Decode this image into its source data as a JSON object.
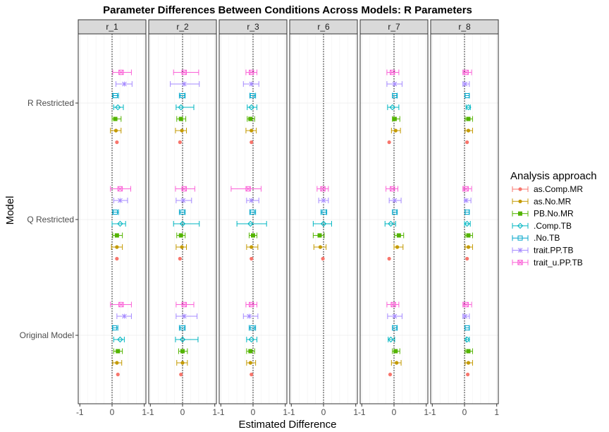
{
  "chart_data": {
    "type": "forest",
    "title": "Parameter Differences Between Conditions Across Models: R Parameters",
    "xlabel": "Estimated Difference",
    "ylabel": "Model",
    "xlim": [
      -1.05,
      1.05
    ],
    "x_ticks": [
      -1,
      0,
      1
    ],
    "x_tick_labels": [
      "-1",
      "0",
      "1"
    ],
    "reference_line": 0,
    "models": [
      "R Restricted",
      "Q Restricted",
      "Original Model"
    ],
    "panels": [
      "r_1",
      "r_2",
      "r_3",
      "r_6",
      "r_7",
      "r_8"
    ],
    "legend": {
      "title": "Analysis approach",
      "position": "right",
      "items": [
        {
          "name": "as.Comp.MR",
          "color": "#F8766D",
          "shape": "circle"
        },
        {
          "name": "as.No.MR",
          "color": "#C49A00",
          "shape": "circle"
        },
        {
          "name": "PB.No.MR",
          "color": "#53B400",
          "shape": "square"
        },
        {
          "name": ".Comp.TB",
          "color": "#00B6C2",
          "shape": "diamond"
        },
        {
          "name": ".No.TB",
          "color": "#00A6CA",
          "shape": "square-open"
        },
        {
          "name": "trait.PP.TB",
          "color": "#A58AFF",
          "shape": "star"
        },
        {
          "name": "trait_u.PP.TB",
          "color": "#FB61D7",
          "shape": "square-cross"
        }
      ]
    },
    "series": [
      {
        "name": "as.Comp.MR",
        "data": {
          "r_1": [
            {
              "m": "R Restricted",
              "est": 0.15,
              "lo": 0.15,
              "hi": 0.15
            },
            {
              "m": "Q Restricted",
              "est": 0.15,
              "lo": 0.15,
              "hi": 0.15
            },
            {
              "m": "Original Model",
              "est": 0.18,
              "lo": 0.18,
              "hi": 0.18
            }
          ],
          "r_2": [
            {
              "m": "R Restricted",
              "est": -0.08,
              "lo": -0.08,
              "hi": -0.08
            },
            {
              "m": "Q Restricted",
              "est": -0.08,
              "lo": -0.08,
              "hi": -0.08
            },
            {
              "m": "Original Model",
              "est": -0.05,
              "lo": -0.05,
              "hi": -0.05
            }
          ],
          "r_3": [
            {
              "m": "R Restricted",
              "est": -0.05,
              "lo": -0.05,
              "hi": -0.05
            },
            {
              "m": "Q Restricted",
              "est": -0.05,
              "lo": -0.05,
              "hi": -0.05
            },
            {
              "m": "Original Model",
              "est": -0.05,
              "lo": -0.05,
              "hi": -0.05
            }
          ],
          "r_6": [
            {
              "m": "Q Restricted",
              "est": -0.02,
              "lo": -0.02,
              "hi": -0.02
            }
          ],
          "r_7": [
            {
              "m": "R Restricted",
              "est": -0.15,
              "lo": -0.15,
              "hi": -0.15
            },
            {
              "m": "Q Restricted",
              "est": -0.15,
              "lo": -0.15,
              "hi": -0.15
            },
            {
              "m": "Original Model",
              "est": -0.12,
              "lo": -0.12,
              "hi": -0.12
            }
          ],
          "r_8": [
            {
              "m": "R Restricted",
              "est": 0.08,
              "lo": 0.08,
              "hi": 0.08
            },
            {
              "m": "Q Restricted",
              "est": 0.08,
              "lo": 0.08,
              "hi": 0.08
            },
            {
              "m": "Original Model",
              "est": 0.1,
              "lo": 0.1,
              "hi": 0.1
            }
          ]
        }
      },
      {
        "name": "as.No.MR",
        "data": {
          "r_1": [
            {
              "m": "R Restricted",
              "est": 0.12,
              "lo": -0.05,
              "hi": 0.28
            },
            {
              "m": "Q Restricted",
              "est": 0.15,
              "lo": -0.02,
              "hi": 0.32
            },
            {
              "m": "Original Model",
              "est": 0.15,
              "lo": 0.02,
              "hi": 0.3
            }
          ],
          "r_2": [
            {
              "m": "R Restricted",
              "est": -0.02,
              "lo": -0.22,
              "hi": 0.12
            },
            {
              "m": "Q Restricted",
              "est": -0.02,
              "lo": -0.2,
              "hi": 0.12
            },
            {
              "m": "Original Model",
              "est": 0.0,
              "lo": -0.18,
              "hi": 0.15
            }
          ],
          "r_3": [
            {
              "m": "R Restricted",
              "est": -0.05,
              "lo": -0.22,
              "hi": 0.1
            },
            {
              "m": "Q Restricted",
              "est": -0.05,
              "lo": -0.2,
              "hi": 0.15
            },
            {
              "m": "Original Model",
              "est": -0.08,
              "lo": -0.2,
              "hi": 0.08
            }
          ],
          "r_6": [
            {
              "m": "Q Restricted",
              "est": -0.1,
              "lo": -0.3,
              "hi": 0.08
            }
          ],
          "r_7": [
            {
              "m": "R Restricted",
              "est": 0.05,
              "lo": -0.08,
              "hi": 0.2
            },
            {
              "m": "Q Restricted",
              "est": 0.1,
              "lo": 0.0,
              "hi": 0.28
            },
            {
              "m": "Original Model",
              "est": 0.08,
              "lo": -0.08,
              "hi": 0.22
            }
          ],
          "r_8": [
            {
              "m": "R Restricted",
              "est": 0.12,
              "lo": 0.02,
              "hi": 0.25
            },
            {
              "m": "Q Restricted",
              "est": 0.12,
              "lo": 0.02,
              "hi": 0.25
            },
            {
              "m": "Original Model",
              "est": 0.12,
              "lo": 0.02,
              "hi": 0.25
            }
          ]
        }
      },
      {
        "name": "PB.No.MR",
        "data": {
          "r_1": [
            {
              "m": "R Restricted",
              "est": 0.1,
              "lo": 0.0,
              "hi": 0.28
            },
            {
              "m": "Q Restricted",
              "est": 0.15,
              "lo": 0.02,
              "hi": 0.32
            },
            {
              "m": "Original Model",
              "est": 0.18,
              "lo": 0.05,
              "hi": 0.32
            }
          ],
          "r_2": [
            {
              "m": "R Restricted",
              "est": -0.05,
              "lo": -0.18,
              "hi": 0.1
            },
            {
              "m": "Q Restricted",
              "est": -0.05,
              "lo": -0.18,
              "hi": 0.08
            },
            {
              "m": "Original Model",
              "est": 0.0,
              "lo": -0.12,
              "hi": 0.15
            }
          ],
          "r_3": [
            {
              "m": "R Restricted",
              "est": -0.08,
              "lo": -0.18,
              "hi": 0.05
            },
            {
              "m": "Q Restricted",
              "est": 0.0,
              "lo": -0.12,
              "hi": 0.12
            },
            {
              "m": "Original Model",
              "est": -0.08,
              "lo": -0.2,
              "hi": 0.05
            }
          ],
          "r_6": [
            {
              "m": "Q Restricted",
              "est": -0.12,
              "lo": -0.32,
              "hi": 0.02
            }
          ],
          "r_7": [
            {
              "m": "R Restricted",
              "est": 0.02,
              "lo": -0.05,
              "hi": 0.18
            },
            {
              "m": "Q Restricted",
              "est": 0.15,
              "lo": 0.02,
              "hi": 0.3
            },
            {
              "m": "Original Model",
              "est": 0.05,
              "lo": -0.05,
              "hi": 0.18
            }
          ],
          "r_8": [
            {
              "m": "R Restricted",
              "est": 0.12,
              "lo": 0.02,
              "hi": 0.25
            },
            {
              "m": "Q Restricted",
              "est": 0.12,
              "lo": 0.02,
              "hi": 0.25
            },
            {
              "m": "Original Model",
              "est": 0.12,
              "lo": 0.02,
              "hi": 0.25
            }
          ]
        }
      },
      {
        "name": ".Comp.TB",
        "data": {
          "r_1": [
            {
              "m": "R Restricted",
              "est": 0.18,
              "lo": 0.05,
              "hi": 0.35
            },
            {
              "m": "Q Restricted",
              "est": 0.25,
              "lo": 0.0,
              "hi": 0.42
            },
            {
              "m": "Original Model",
              "est": 0.25,
              "lo": 0.05,
              "hi": 0.38
            }
          ],
          "r_2": [
            {
              "m": "R Restricted",
              "est": -0.05,
              "lo": -0.2,
              "hi": 0.35
            },
            {
              "m": "Q Restricted",
              "est": 0.0,
              "lo": -0.28,
              "hi": 0.52
            },
            {
              "m": "Original Model",
              "est": 0.0,
              "lo": -0.22,
              "hi": 0.48
            }
          ],
          "r_3": [
            {
              "m": "R Restricted",
              "est": -0.05,
              "lo": -0.18,
              "hi": 0.12
            },
            {
              "m": "Q Restricted",
              "est": -0.08,
              "lo": -0.5,
              "hi": 0.42
            },
            {
              "m": "Original Model",
              "est": -0.05,
              "lo": -0.2,
              "hi": 0.12
            }
          ],
          "r_6": [
            {
              "m": "Q Restricted",
              "est": 0.0,
              "lo": -0.32,
              "hi": 0.25
            }
          ],
          "r_7": [
            {
              "m": "R Restricted",
              "est": -0.05,
              "lo": -0.2,
              "hi": 0.15
            },
            {
              "m": "Q Restricted",
              "est": -0.1,
              "lo": -0.28,
              "hi": 0.05
            },
            {
              "m": "Original Model",
              "est": -0.1,
              "lo": -0.18,
              "hi": 0.02
            }
          ],
          "r_8": [
            {
              "m": "R Restricted",
              "est": 0.12,
              "lo": 0.05,
              "hi": 0.18
            },
            {
              "m": "Q Restricted",
              "est": 0.08,
              "lo": 0.0,
              "hi": 0.18
            },
            {
              "m": "Original Model",
              "est": 0.08,
              "lo": 0.05,
              "hi": 0.15
            }
          ]
        }
      },
      {
        "name": ".No.TB",
        "data": {
          "r_1": [
            {
              "m": "R Restricted",
              "est": 0.1,
              "lo": 0.02,
              "hi": 0.2
            },
            {
              "m": "Q Restricted",
              "est": 0.1,
              "lo": 0.02,
              "hi": 0.2
            },
            {
              "m": "Original Model",
              "est": 0.08,
              "lo": 0.02,
              "hi": 0.18
            }
          ],
          "r_2": [
            {
              "m": "R Restricted",
              "est": 0.0,
              "lo": -0.1,
              "hi": 0.08
            },
            {
              "m": "Q Restricted",
              "est": 0.0,
              "lo": -0.1,
              "hi": 0.08
            },
            {
              "m": "Original Model",
              "est": 0.0,
              "lo": -0.1,
              "hi": 0.08
            }
          ],
          "r_3": [
            {
              "m": "R Restricted",
              "est": -0.02,
              "lo": -0.1,
              "hi": 0.08
            },
            {
              "m": "Q Restricted",
              "est": -0.02,
              "lo": -0.1,
              "hi": 0.08
            },
            {
              "m": "Original Model",
              "est": -0.02,
              "lo": -0.12,
              "hi": 0.08
            }
          ],
          "r_6": [
            {
              "m": "Q Restricted",
              "est": 0.02,
              "lo": -0.08,
              "hi": 0.1
            }
          ],
          "r_7": [
            {
              "m": "R Restricted",
              "est": 0.02,
              "lo": -0.05,
              "hi": 0.1
            },
            {
              "m": "Q Restricted",
              "est": 0.02,
              "lo": -0.05,
              "hi": 0.1
            },
            {
              "m": "Original Model",
              "est": 0.02,
              "lo": -0.05,
              "hi": 0.1
            }
          ],
          "r_8": [
            {
              "m": "R Restricted",
              "est": 0.08,
              "lo": 0.02,
              "hi": 0.15
            },
            {
              "m": "Q Restricted",
              "est": 0.08,
              "lo": 0.02,
              "hi": 0.15
            },
            {
              "m": "Original Model",
              "est": 0.08,
              "lo": 0.02,
              "hi": 0.15
            }
          ]
        }
      },
      {
        "name": "trait.PP.TB",
        "data": {
          "r_1": [
            {
              "m": "R Restricted",
              "est": 0.38,
              "lo": 0.12,
              "hi": 0.62
            },
            {
              "m": "Q Restricted",
              "est": 0.25,
              "lo": 0.05,
              "hi": 0.48
            },
            {
              "m": "Original Model",
              "est": 0.38,
              "lo": 0.15,
              "hi": 0.6
            }
          ],
          "r_2": [
            {
              "m": "R Restricted",
              "est": 0.05,
              "lo": -0.38,
              "hi": 0.52
            },
            {
              "m": "Q Restricted",
              "est": 0.02,
              "lo": -0.2,
              "hi": 0.28
            },
            {
              "m": "Original Model",
              "est": 0.05,
              "lo": -0.2,
              "hi": 0.45
            }
          ],
          "r_3": [
            {
              "m": "R Restricted",
              "est": -0.05,
              "lo": -0.3,
              "hi": 0.18
            },
            {
              "m": "Q Restricted",
              "est": -0.05,
              "lo": -0.2,
              "hi": 0.18
            },
            {
              "m": "Original Model",
              "est": -0.12,
              "lo": -0.3,
              "hi": 0.15
            }
          ],
          "r_6": [
            {
              "m": "Q Restricted",
              "est": 0.0,
              "lo": -0.15,
              "hi": 0.15
            }
          ],
          "r_7": [
            {
              "m": "R Restricted",
              "est": 0.02,
              "lo": -0.22,
              "hi": 0.25
            },
            {
              "m": "Q Restricted",
              "est": 0.02,
              "lo": -0.15,
              "hi": 0.22
            },
            {
              "m": "Original Model",
              "est": 0.02,
              "lo": -0.2,
              "hi": 0.25
            }
          ],
          "r_8": [
            {
              "m": "R Restricted",
              "est": 0.02,
              "lo": -0.05,
              "hi": 0.15
            },
            {
              "m": "Q Restricted",
              "est": 0.05,
              "lo": 0.0,
              "hi": 0.2
            },
            {
              "m": "Original Model",
              "est": 0.02,
              "lo": -0.05,
              "hi": 0.15
            }
          ]
        }
      },
      {
        "name": "trait_u.PP.TB",
        "data": {
          "r_1": [
            {
              "m": "R Restricted",
              "est": 0.28,
              "lo": 0.02,
              "hi": 0.6
            },
            {
              "m": "Q Restricted",
              "est": 0.25,
              "lo": -0.05,
              "hi": 0.58
            },
            {
              "m": "Original Model",
              "est": 0.28,
              "lo": -0.05,
              "hi": 0.6
            }
          ],
          "r_2": [
            {
              "m": "R Restricted",
              "est": 0.05,
              "lo": -0.28,
              "hi": 0.5
            },
            {
              "m": "Q Restricted",
              "est": 0.05,
              "lo": -0.22,
              "hi": 0.38
            },
            {
              "m": "Original Model",
              "est": 0.05,
              "lo": -0.2,
              "hi": 0.35
            }
          ],
          "r_3": [
            {
              "m": "R Restricted",
              "est": -0.05,
              "lo": -0.22,
              "hi": 0.12
            },
            {
              "m": "Q Restricted",
              "est": -0.15,
              "lo": -0.68,
              "hi": 0.25
            },
            {
              "m": "Original Model",
              "est": -0.05,
              "lo": -0.22,
              "hi": 0.12
            }
          ],
          "r_6": [
            {
              "m": "Q Restricted",
              "est": -0.02,
              "lo": -0.2,
              "hi": 0.15
            }
          ],
          "r_7": [
            {
              "m": "R Restricted",
              "est": -0.05,
              "lo": -0.22,
              "hi": 0.15
            },
            {
              "m": "Q Restricted",
              "est": -0.05,
              "lo": -0.25,
              "hi": 0.12
            },
            {
              "m": "Original Model",
              "est": -0.02,
              "lo": -0.22,
              "hi": 0.15
            }
          ],
          "r_8": [
            {
              "m": "R Restricted",
              "est": 0.05,
              "lo": -0.05,
              "hi": 0.22
            },
            {
              "m": "Q Restricted",
              "est": 0.05,
              "lo": -0.05,
              "hi": 0.22
            },
            {
              "m": "Original Model",
              "est": 0.05,
              "lo": -0.05,
              "hi": 0.22
            }
          ]
        }
      }
    ]
  }
}
